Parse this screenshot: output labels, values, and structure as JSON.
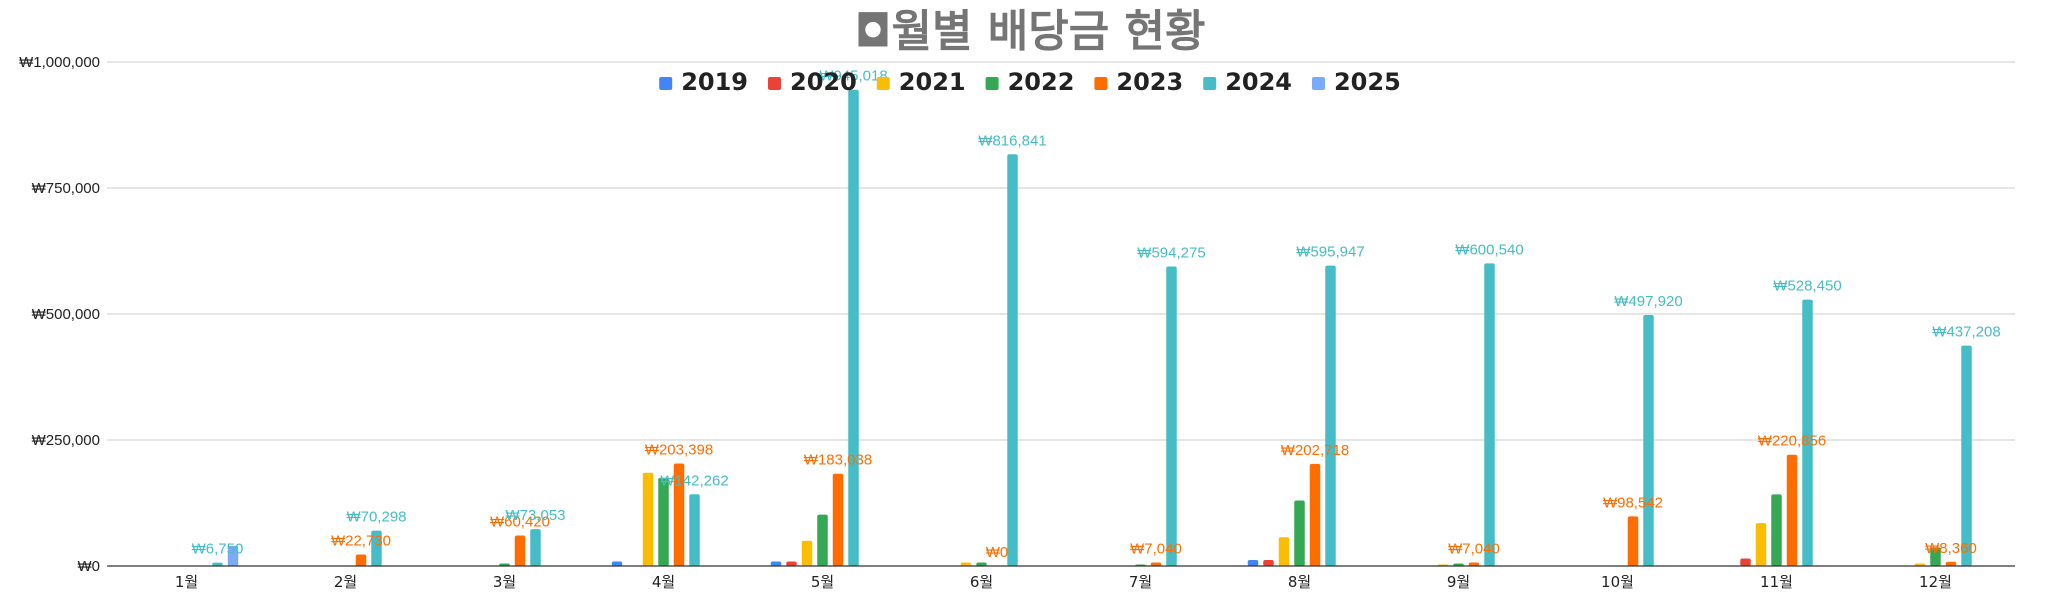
{
  "chart_data": {
    "type": "bar",
    "title": "◘월별 배당금 현황",
    "xlabel": "",
    "ylabel": "",
    "ylim": [
      0,
      1000000
    ],
    "y_ticks": [
      "₩0",
      "₩250,000",
      "₩500,000",
      "₩750,000",
      "₩1,000,000"
    ],
    "grid": true,
    "legend_position": "top",
    "categories": [
      "1월",
      "2월",
      "3월",
      "4월",
      "5월",
      "6월",
      "7월",
      "8월",
      "9월",
      "10월",
      "11월",
      "12월"
    ],
    "series": [
      {
        "name": "2019",
        "color": "#4285F4",
        "values": [
          0,
          0,
          0,
          9000,
          9000,
          0,
          0,
          12000,
          0,
          0,
          0,
          0
        ]
      },
      {
        "name": "2020",
        "color": "#EA4335",
        "values": [
          0,
          0,
          0,
          0,
          9000,
          0,
          0,
          12000,
          0,
          0,
          15000,
          0
        ]
      },
      {
        "name": "2021",
        "color": "#FBBC04",
        "values": [
          0,
          0,
          0,
          185000,
          50000,
          7000,
          0,
          57000,
          3000,
          0,
          85000,
          5000
        ]
      },
      {
        "name": "2022",
        "color": "#34A853",
        "values": [
          0,
          0,
          5000,
          175000,
          102000,
          7000,
          3000,
          130000,
          5000,
          0,
          142000,
          37000
        ]
      },
      {
        "name": "2023",
        "color": "#FF6D01",
        "values": [
          0,
          22730,
          60420,
          203398,
          183038,
          0,
          7040,
          202718,
          7040,
          98542,
          220856,
          8360
        ]
      },
      {
        "name": "2024",
        "color": "#46BDC6",
        "values": [
          6750,
          70298,
          73053,
          142262,
          945018,
          816841,
          594275,
          595947,
          600540,
          497920,
          528450,
          437208
        ]
      },
      {
        "name": "2025",
        "color": "#7BAAF7",
        "values": [
          40000,
          0,
          0,
          0,
          0,
          0,
          0,
          0,
          0,
          0,
          0,
          0
        ]
      }
    ],
    "data_labels": [
      {
        "series": "2024",
        "category": "1월",
        "text": "₩6,750"
      },
      {
        "series": "2023",
        "category": "2월",
        "text": "₩22,730"
      },
      {
        "series": "2024",
        "category": "2월",
        "text": "₩70,298"
      },
      {
        "series": "2023",
        "category": "3월",
        "text": "₩60,420"
      },
      {
        "series": "2024",
        "category": "3월",
        "text": "₩73,053"
      },
      {
        "series": "2023",
        "category": "4월",
        "text": "₩203,398"
      },
      {
        "series": "2024",
        "category": "4월",
        "text": "₩142,262"
      },
      {
        "series": "2023",
        "category": "5월",
        "text": "₩183,038"
      },
      {
        "series": "2024",
        "category": "5월",
        "text": "₩945,018"
      },
      {
        "series": "2023",
        "category": "6월",
        "text": "₩0"
      },
      {
        "series": "2024",
        "category": "6월",
        "text": "₩816,841"
      },
      {
        "series": "2023",
        "category": "7월",
        "text": "₩7,040"
      },
      {
        "series": "2024",
        "category": "7월",
        "text": "₩594,275"
      },
      {
        "series": "2023",
        "category": "8월",
        "text": "₩202,718"
      },
      {
        "series": "2024",
        "category": "8월",
        "text": "₩595,947"
      },
      {
        "series": "2023",
        "category": "9월",
        "text": "₩7,040"
      },
      {
        "series": "2024",
        "category": "9월",
        "text": "₩600,540"
      },
      {
        "series": "2023",
        "category": "10월",
        "text": "₩98,542"
      },
      {
        "series": "2024",
        "category": "10월",
        "text": "₩497,920"
      },
      {
        "series": "2023",
        "category": "11월",
        "text": "₩220,856"
      },
      {
        "series": "2024",
        "category": "11월",
        "text": "₩528,450"
      },
      {
        "series": "2023",
        "category": "12월",
        "text": "₩8,360"
      },
      {
        "series": "2024",
        "category": "12월",
        "text": "₩437,208"
      }
    ]
  }
}
